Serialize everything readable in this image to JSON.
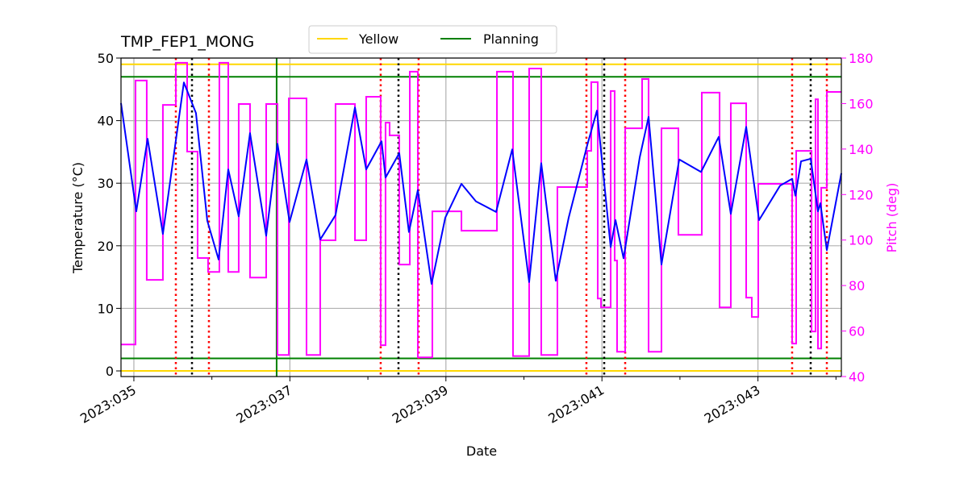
{
  "chart_data": {
    "type": "line",
    "title": "TMP_FEP1_MONG",
    "xlabel": "Date",
    "ylabel": "Temperature (°C)",
    "y2label": "Pitch (deg)",
    "xlim": [
      34.835,
      44.069
    ],
    "ylim": [
      -0.9,
      50
    ],
    "y2lim": [
      40,
      180
    ],
    "grid": true,
    "legend_placement": "top-center-outside",
    "x_ticks": [
      {
        "value": 35,
        "label": "2023:035"
      },
      {
        "value": 37,
        "label": "2023:037"
      },
      {
        "value": 39,
        "label": "2023:039"
      },
      {
        "value": 41,
        "label": "2023:041"
      },
      {
        "value": 43,
        "label": "2023:043"
      }
    ],
    "x_minor_ticks": [
      36,
      38,
      40,
      42,
      44
    ],
    "y_ticks": [
      0,
      10,
      20,
      30,
      40,
      50
    ],
    "y2_ticks": [
      40,
      60,
      80,
      100,
      120,
      140,
      160,
      180
    ],
    "colors": {
      "temperature": "#0000ff",
      "pitch": "#ff00ff",
      "yellow": "#ffd700",
      "planning": "#008000",
      "red_marker": "#ff0000",
      "black_marker": "#000000",
      "grid": "#b0b0b0"
    },
    "legend": [
      {
        "name": "Yellow",
        "color": "#ffd700"
      },
      {
        "name": "Planning",
        "color": "#008000"
      }
    ],
    "limits": {
      "yellow": [
        49,
        0
      ],
      "planning": [
        47,
        2
      ]
    },
    "planning_vertical_day": 36.83,
    "red_dotted_days": [
      35.538,
      35.962,
      38.164,
      38.65,
      40.801,
      41.298,
      43.438,
      43.883
    ],
    "black_dotted_days": [
      35.745,
      38.392,
      41.029,
      43.676
    ],
    "temperature": {
      "x": [
        34.835,
        35.031,
        35.176,
        35.372,
        35.641,
        35.796,
        35.941,
        36.086,
        36.21,
        36.344,
        36.489,
        36.696,
        36.841,
        36.996,
        37.213,
        37.389,
        37.585,
        37.834,
        37.978,
        38.175,
        38.226,
        38.402,
        38.526,
        38.64,
        38.816,
        38.992,
        39.199,
        39.385,
        39.643,
        39.85,
        40.067,
        40.222,
        40.408,
        40.574,
        40.812,
        40.936,
        41.112,
        41.174,
        41.277,
        41.484,
        41.598,
        41.763,
        41.991,
        42.27,
        42.497,
        42.652,
        42.849,
        43.014,
        43.283,
        43.438,
        43.48,
        43.552,
        43.676,
        43.769,
        43.8,
        43.883,
        44.069
      ],
      "y": [
        42.8,
        25.5,
        37.1,
        21.9,
        46.1,
        41.2,
        24.0,
        17.8,
        32.2,
        24.7,
        38.0,
        21.6,
        36.3,
        23.8,
        33.8,
        21.0,
        24.9,
        42.1,
        32.2,
        36.7,
        30.9,
        34.8,
        22.2,
        28.9,
        13.9,
        24.5,
        29.9,
        27.1,
        25.4,
        35.4,
        14.2,
        33.2,
        14.4,
        24.5,
        36.1,
        41.6,
        19.8,
        24.1,
        18.0,
        34.1,
        40.6,
        17.0,
        33.8,
        31.8,
        37.4,
        25.1,
        39.0,
        24.1,
        29.6,
        30.7,
        28.0,
        33.5,
        33.9,
        25.5,
        26.8,
        19.3,
        31.6
      ]
    },
    "pitch_steps": {
      "x": [
        34.835,
        35.021,
        35.165,
        35.372,
        35.538,
        35.683,
        35.817,
        35.951,
        36.096,
        36.21,
        36.344,
        36.489,
        36.696,
        36.841,
        36.986,
        37.213,
        37.389,
        37.585,
        37.834,
        37.978,
        38.164,
        38.226,
        38.278,
        38.402,
        38.537,
        38.64,
        38.826,
        39.199,
        39.654,
        39.86,
        40.067,
        40.222,
        40.429,
        40.812,
        40.863,
        40.946,
        40.988,
        41.112,
        41.163,
        41.194,
        41.298,
        41.515,
        41.598,
        41.763,
        41.98,
        42.28,
        42.508,
        42.652,
        42.849,
        42.921,
        43.004,
        43.438,
        43.49,
        43.687,
        43.738,
        43.769,
        43.811,
        43.883,
        44.069
      ],
      "y": [
        54.1,
        170.1,
        82.5,
        159.4,
        177.9,
        138.9,
        92.1,
        86.0,
        177.9,
        86.0,
        159.8,
        83.5,
        159.8,
        49.5,
        162.3,
        49.5,
        99.9,
        159.8,
        99.9,
        163.0,
        53.8,
        151.6,
        146.0,
        89.2,
        174.0,
        48.4,
        112.6,
        104.1,
        174.0,
        49.0,
        175.4,
        49.5,
        123.3,
        139.2,
        169.4,
        74.3,
        70.4,
        165.5,
        91.0,
        50.9,
        149.1,
        170.8,
        50.9,
        149.1,
        102.3,
        164.8,
        70.4,
        160.1,
        74.7,
        66.2,
        124.7,
        54.5,
        139.2,
        59.8,
        161.9,
        52.3,
        123.0,
        165.1,
        165.1
      ]
    }
  }
}
